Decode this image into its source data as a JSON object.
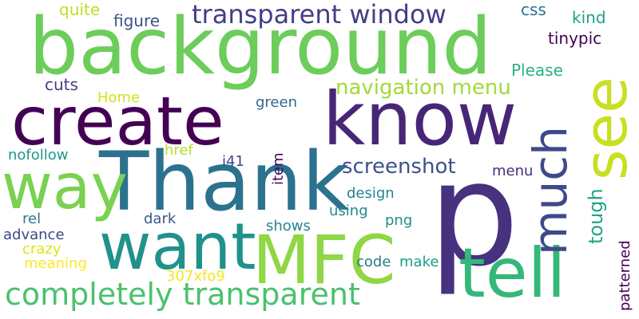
{
  "word_cloud": {
    "words": [
      {
        "text": "p",
        "color": "#46327e"
      },
      {
        "text": "background",
        "color": "#6ccd5a"
      },
      {
        "text": "Thank",
        "color": "#2c728e"
      },
      {
        "text": "know",
        "color": "#482677"
      },
      {
        "text": "create",
        "color": "#440154"
      },
      {
        "text": "MFC",
        "color": "#8fd744"
      },
      {
        "text": "want",
        "color": "#21918c"
      },
      {
        "text": "tell",
        "color": "#35b779"
      },
      {
        "text": "way",
        "color": "#7ad151"
      },
      {
        "text": "see",
        "color": "#c8e020"
      },
      {
        "text": "much",
        "color": "#3e4989"
      },
      {
        "text": "completely transparent",
        "color": "#4ac16d"
      },
      {
        "text": "transparent window",
        "color": "#433e85"
      },
      {
        "text": "navigation menu",
        "color": "#a2da37"
      },
      {
        "text": "screenshot",
        "color": "#3b528b"
      },
      {
        "text": "tough",
        "color": "#20a486"
      },
      {
        "text": "figure",
        "color": "#3b528b"
      },
      {
        "text": "quite",
        "color": "#bddf26"
      },
      {
        "text": "css",
        "color": "#2c728e"
      },
      {
        "text": "kind",
        "color": "#1fa187"
      },
      {
        "text": "tinypic",
        "color": "#440154"
      },
      {
        "text": "cuts",
        "color": "#424086"
      },
      {
        "text": "Please",
        "color": "#2db27d"
      },
      {
        "text": "Home",
        "color": "#d2e21b"
      },
      {
        "text": "green",
        "color": "#31688e"
      },
      {
        "text": "item",
        "color": "#440154"
      },
      {
        "text": "nofollow",
        "color": "#1f988b"
      },
      {
        "text": "href",
        "color": "#b5de2b"
      },
      {
        "text": "i41",
        "color": "#414487"
      },
      {
        "text": "menu",
        "color": "#472d7b"
      },
      {
        "text": "design",
        "color": "#25838e"
      },
      {
        "text": "using",
        "color": "#23888e"
      },
      {
        "text": "dark",
        "color": "#38588c"
      },
      {
        "text": "rel",
        "color": "#29798e"
      },
      {
        "text": "png",
        "color": "#218e8d"
      },
      {
        "text": "shows",
        "color": "#24868e"
      },
      {
        "text": "advance",
        "color": "#3e4989"
      },
      {
        "text": "crazy",
        "color": "#dde318"
      },
      {
        "text": "meaning",
        "color": "#fde725"
      },
      {
        "text": "307xfo9",
        "color": "#f6e620"
      },
      {
        "text": "code",
        "color": "#2a788e"
      },
      {
        "text": "make",
        "color": "#1e9c89"
      },
      {
        "text": "patterned",
        "color": "#440154"
      }
    ]
  }
}
